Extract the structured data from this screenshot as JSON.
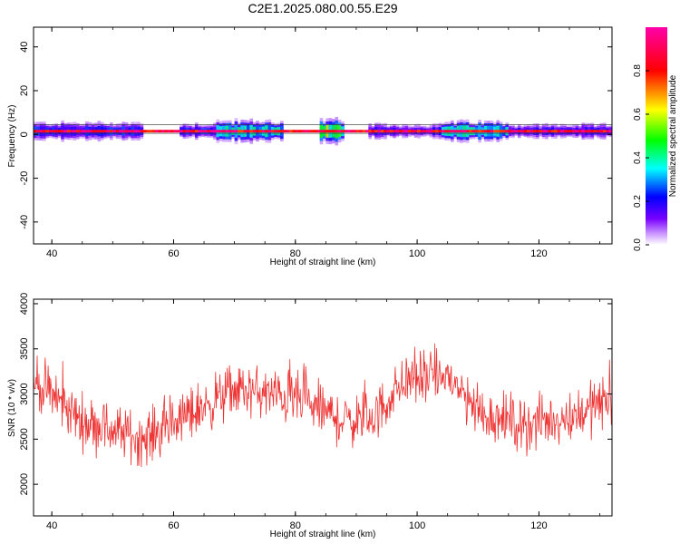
{
  "figure": {
    "title": "C2E1.2025.080.00.55.E29"
  },
  "colors": {
    "snr_line": "#ee3333",
    "centerline": "#333333",
    "background": "#ffffff"
  },
  "chart_data": [
    {
      "type": "heatmap",
      "name": "spectrogram",
      "xlabel": "Height of straight line (km)",
      "ylabel": "Frequency (Hz)",
      "xlim": [
        37,
        132
      ],
      "ylim": [
        -50,
        49
      ],
      "xticks": [
        40,
        60,
        80,
        100,
        120
      ],
      "yticks": [
        40,
        20,
        0,
        -20,
        -40
      ],
      "colorbar": {
        "label": "Normalized spectral amplitude",
        "range": [
          0,
          1
        ],
        "ticks": [
          "0.0",
          "0.2",
          "0.4",
          "0.6",
          "0.8"
        ],
        "colormap": [
          "#ffffff",
          "#7700ff",
          "#0000ff",
          "#00ffff",
          "#00ff00",
          "#ffff00",
          "#ff0000",
          "#ff00aa"
        ]
      },
      "center_band": {
        "freq_hz": 1.5,
        "half_width_hz": 0.6
      },
      "activity_segments": [
        {
          "x_start": 37,
          "x_end": 55,
          "halfwidth_hz": 4.5,
          "level": 0.35
        },
        {
          "x_start": 61,
          "x_end": 67,
          "halfwidth_hz": 4.0,
          "level": 0.35
        },
        {
          "x_start": 67,
          "x_end": 78,
          "halfwidth_hz": 5.5,
          "level": 0.55
        },
        {
          "x_start": 84,
          "x_end": 88,
          "halfwidth_hz": 6.0,
          "level": 0.7
        },
        {
          "x_start": 92,
          "x_end": 104,
          "halfwidth_hz": 3.5,
          "level": 0.3
        },
        {
          "x_start": 104,
          "x_end": 115,
          "halfwidth_hz": 5.0,
          "level": 0.55
        },
        {
          "x_start": 115,
          "x_end": 132,
          "halfwidth_hz": 3.5,
          "level": 0.3
        }
      ]
    },
    {
      "type": "line",
      "name": "snr",
      "xlabel": "Height of straight line (km)",
      "ylabel": "SNR (10 * v/v)",
      "xlim": [
        37,
        132
      ],
      "ylim": [
        1650,
        4050
      ],
      "xticks": [
        40,
        60,
        80,
        100,
        120
      ],
      "yticks": [
        2000,
        2500,
        3000,
        3500,
        4000
      ],
      "x_step_km": 0.1,
      "trend": [
        {
          "x": 37,
          "y": 3150
        },
        {
          "x": 45,
          "y": 2700
        },
        {
          "x": 55,
          "y": 2500
        },
        {
          "x": 62,
          "y": 2750
        },
        {
          "x": 70,
          "y": 3050
        },
        {
          "x": 80,
          "y": 2950
        },
        {
          "x": 88,
          "y": 2700
        },
        {
          "x": 93,
          "y": 2750
        },
        {
          "x": 98,
          "y": 3150
        },
        {
          "x": 105,
          "y": 3200
        },
        {
          "x": 110,
          "y": 2800
        },
        {
          "x": 118,
          "y": 2650
        },
        {
          "x": 125,
          "y": 2750
        },
        {
          "x": 132,
          "y": 2950
        }
      ],
      "noise_amplitude": 320
    }
  ]
}
